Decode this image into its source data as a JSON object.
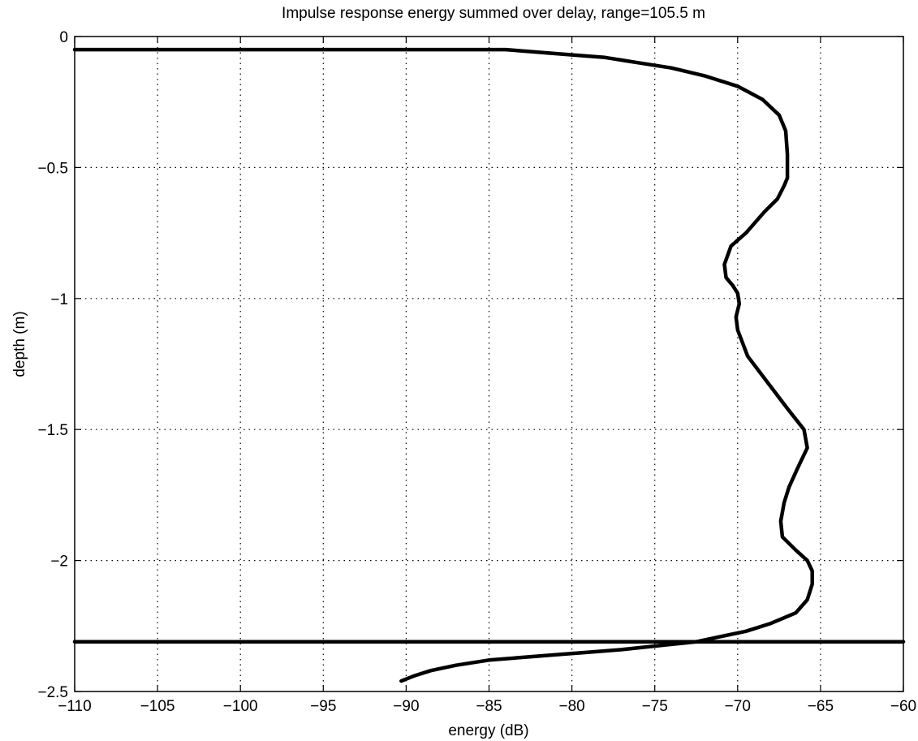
{
  "chart_data": {
    "type": "line",
    "title": "Impulse response energy summed over delay, range=105.5 m",
    "xlabel": "energy (dB)",
    "ylabel": "depth (m)",
    "xlim": [
      -110,
      -60
    ],
    "ylim": [
      -2.5,
      0
    ],
    "xticks": [
      -110,
      -105,
      -100,
      -95,
      -90,
      -85,
      -80,
      -75,
      -70,
      -65,
      -60
    ],
    "yticks": [
      0,
      -0.5,
      -1,
      -1.5,
      -2,
      -2.5
    ],
    "xtick_labels": [
      "−110",
      "−105",
      "−100",
      "−95",
      "−90",
      "−85",
      "−80",
      "−75",
      "−70",
      "−65",
      "−60"
    ],
    "ytick_labels": [
      "0",
      "−0.5",
      "−1",
      "−1.5",
      "−2",
      "−2.5"
    ],
    "grid": true,
    "series": [
      {
        "x": [
          -110,
          -100,
          -90,
          -84,
          -82,
          -80,
          -78,
          -76,
          -74,
          -72,
          -70,
          -68.5,
          -67.5,
          -67.1,
          -67.0,
          -67.0,
          -67.2,
          -67.6,
          -68.4,
          -69.5,
          -70.4,
          -70.8,
          -70.7,
          -70.3,
          -70.0,
          -69.9,
          -70.1,
          -70.0,
          -69.4,
          -68.2,
          -67.0,
          -66.0,
          -65.8,
          -66.4,
          -66.9,
          -67.2,
          -67.4,
          -67.3,
          -66.5,
          -65.8,
          -65.5,
          -65.5,
          -65.8,
          -66.5,
          -68.0,
          -69.5,
          -71.0,
          -72.5,
          -74.0,
          -75.5,
          -77.0,
          -79.0,
          -81.0,
          -83.0,
          -85.0,
          -87.0,
          -88.5,
          -89.5,
          -90.3
        ],
        "y": [
          -0.05,
          -0.05,
          -0.05,
          -0.05,
          -0.06,
          -0.07,
          -0.08,
          -0.1,
          -0.12,
          -0.15,
          -0.19,
          -0.24,
          -0.3,
          -0.36,
          -0.45,
          -0.54,
          -0.57,
          -0.62,
          -0.67,
          -0.75,
          -0.8,
          -0.87,
          -0.92,
          -0.95,
          -0.98,
          -1.02,
          -1.07,
          -1.12,
          -1.22,
          -1.32,
          -1.42,
          -1.5,
          -1.57,
          -1.65,
          -1.72,
          -1.78,
          -1.85,
          -1.91,
          -1.96,
          -2.0,
          -2.04,
          -2.09,
          -2.15,
          -2.2,
          -2.24,
          -2.27,
          -2.29,
          -2.31,
          -2.32,
          -2.33,
          -2.34,
          -2.35,
          -2.36,
          -2.37,
          -2.38,
          -2.4,
          -2.42,
          -2.44,
          -2.46
        ]
      },
      {
        "x": [
          -110,
          -60
        ],
        "y": [
          -2.31,
          -2.31
        ]
      }
    ]
  }
}
